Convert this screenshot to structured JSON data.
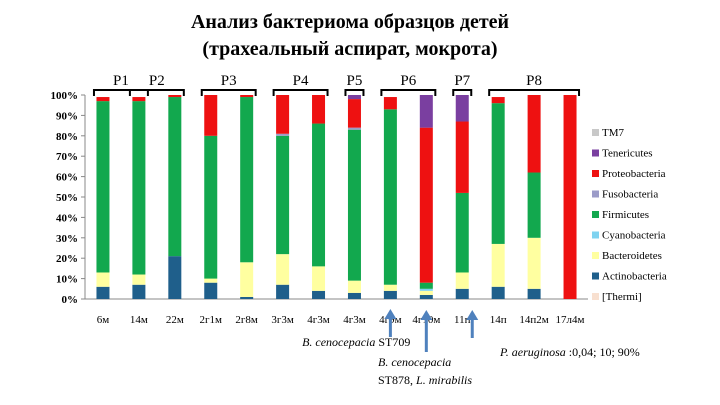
{
  "title_line1": "Анализ бактериома образцов детей",
  "title_line2": "(трахеальный аспират, мокрота)",
  "chart_data": {
    "type": "bar",
    "stacked": true,
    "ylim": [
      0,
      100
    ],
    "yticks": [
      "0%",
      "10%",
      "20%",
      "30%",
      "40%",
      "50%",
      "60%",
      "70%",
      "80%",
      "90%",
      "100%"
    ],
    "grid": false,
    "legend_position": "right",
    "categories": [
      "6м",
      "14м",
      "22м",
      "2г1м",
      "2г8м",
      "3г3м",
      "4г3м",
      "4г3м",
      "4г9м",
      "4г10м",
      "11п",
      "14п",
      "14п2м",
      "17л4м"
    ],
    "series": [
      {
        "name": "[Thermi]",
        "color": "#f8e0d0",
        "values": [
          0,
          0,
          0,
          0,
          0,
          0,
          0,
          0,
          0,
          0,
          0,
          0,
          0,
          0
        ]
      },
      {
        "name": "Actinobacteria",
        "color": "#1f5f8b",
        "values": [
          6,
          7,
          21,
          8,
          1,
          7,
          4,
          3,
          4,
          2,
          5,
          6,
          5,
          0
        ]
      },
      {
        "name": "Bacteroidetes",
        "color": "#ffffa0",
        "values": [
          7,
          5,
          0,
          2,
          17,
          15,
          12,
          6,
          3,
          2,
          8,
          21,
          25,
          0
        ]
      },
      {
        "name": "Cyanobacteria",
        "color": "#7fd3f0",
        "values": [
          0,
          0,
          0,
          0,
          0,
          0,
          0,
          0,
          0,
          1,
          0,
          0,
          0,
          0
        ]
      },
      {
        "name": "Firmicutes",
        "color": "#12a84e",
        "values": [
          84,
          85,
          78,
          70,
          81,
          58,
          70,
          74,
          86,
          3,
          39,
          69,
          32,
          0
        ]
      },
      {
        "name": "Fusobacteria",
        "color": "#9b9bc8",
        "values": [
          0,
          0,
          0,
          0,
          0,
          1,
          0,
          1,
          0,
          0,
          0,
          0,
          0,
          0
        ]
      },
      {
        "name": "Proteobacteria",
        "color": "#ee1111",
        "values": [
          2,
          2,
          1,
          20,
          1,
          19,
          14,
          14,
          6,
          76,
          35,
          3,
          38,
          100
        ]
      },
      {
        "name": "Tenericutes",
        "color": "#7a3fa0",
        "values": [
          0,
          0,
          0,
          0,
          0,
          0,
          0,
          2,
          0,
          16,
          13,
          0,
          0,
          0
        ]
      },
      {
        "name": "TM7",
        "color": "#c8c8c8",
        "values": [
          0,
          0,
          0,
          0,
          0,
          0,
          0,
          0,
          0,
          0,
          0,
          0,
          0,
          0
        ]
      }
    ],
    "legend_order": [
      "TM7",
      "Tenericutes",
      "Proteobacteria",
      "Fusobacteria",
      "Firmicutes",
      "Cyanobacteria",
      "Bacteroidetes",
      "Actinobacteria",
      "[Thermi]"
    ],
    "groups": [
      {
        "label": "P1",
        "from": 0,
        "to": 1
      },
      {
        "label": "P2",
        "from": 1,
        "to": 2
      },
      {
        "label": "P3",
        "from": 3,
        "to": 4
      },
      {
        "label": "P4",
        "from": 5,
        "to": 6
      },
      {
        "label": "P5",
        "from": 7,
        "to": 7
      },
      {
        "label": "P6",
        "from": 8,
        "to": 9
      },
      {
        "label": "P7",
        "from": 10,
        "to": 10
      },
      {
        "label": "P8",
        "from": 11,
        "to": 13
      }
    ],
    "annotations": [
      {
        "italic": "B. cenocepacia",
        "rest": " ST709",
        "category_index": 8
      },
      {
        "italic": "B. cenocepacia",
        "rest": "",
        "line2": "ST878, L. mirabilis",
        "line2_italic_tail": "L. mirabilis",
        "category_index": 9
      },
      {
        "italic": "P. aeruginosa",
        "rest": " :0,04; 10; 90%",
        "category_index": 10
      }
    ]
  }
}
